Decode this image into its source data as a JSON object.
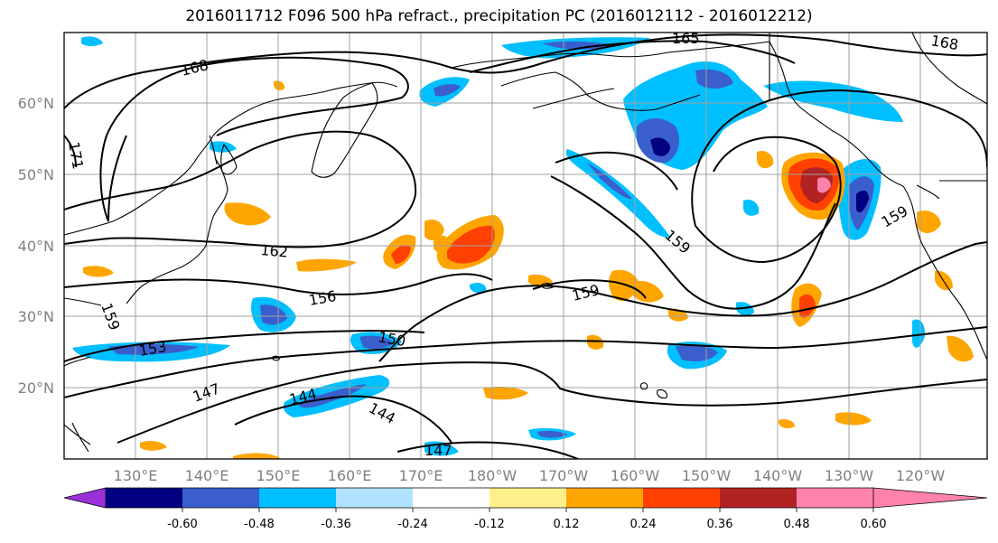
{
  "title": "2016011712 F096 500 hPa refract., precipitation PC (2016012112 - 2016012212)",
  "map": {
    "lat_labels": [
      "60°N",
      "50°N",
      "40°N",
      "30°N",
      "20°N"
    ],
    "lon_labels": [
      "130°E",
      "140°E",
      "150°E",
      "160°E",
      "170°E",
      "180°W",
      "170°W",
      "160°W",
      "150°W",
      "140°W",
      "130°W",
      "120°W"
    ],
    "contour_labels": [
      "168",
      "165",
      "168",
      "171",
      "162",
      "159",
      "156",
      "159",
      "159",
      "159",
      "153",
      "150",
      "147",
      "144",
      "144",
      "147"
    ]
  },
  "colorbar": {
    "tick_labels": [
      "-0.60",
      "-0.48",
      "-0.36",
      "-0.24",
      "-0.12",
      "0.12",
      "0.24",
      "0.36",
      "0.48",
      "0.60"
    ],
    "colors": [
      "#9b30d9",
      "#000080",
      "#3a5fcd",
      "#00bfff",
      "#b0e2ff",
      "#ffffff",
      "#fff08c",
      "#ffa500",
      "#ff4000",
      "#b22222",
      "#ff82ab"
    ]
  }
}
